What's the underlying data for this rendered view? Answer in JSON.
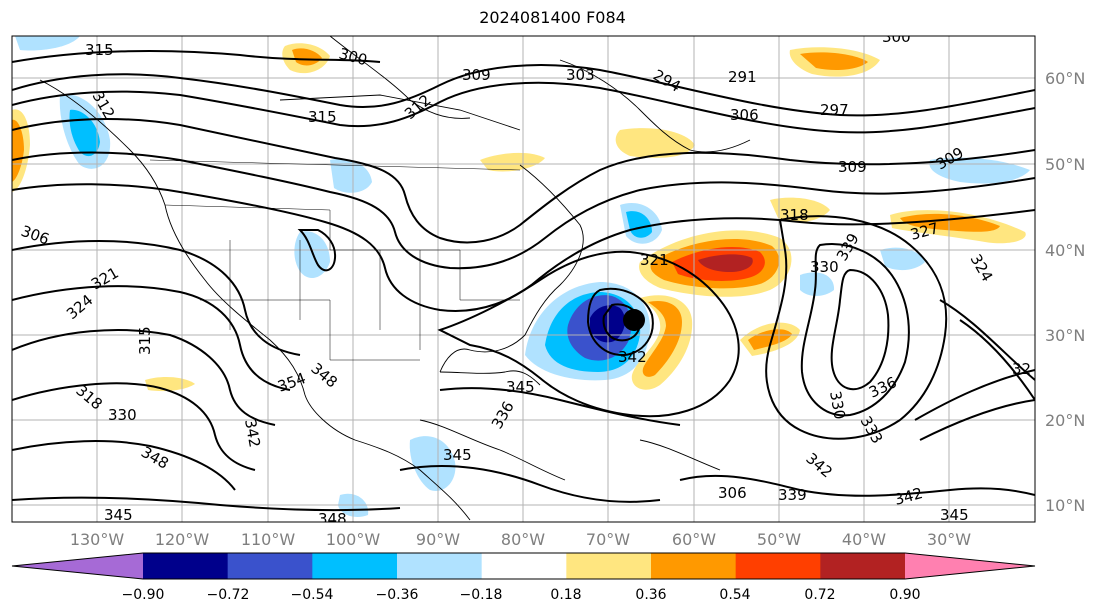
{
  "title": "2024081400 F084",
  "lat_labels": [
    "60°N",
    "50°N",
    "40°N",
    "30°N",
    "20°N",
    "10°N"
  ],
  "lon_labels": [
    "130°W",
    "120°W",
    "110°W",
    "100°W",
    "90°W",
    "80°W",
    "70°W",
    "60°W",
    "50°W",
    "40°W",
    "30°W"
  ],
  "colorbar": {
    "colors": [
      "#a66ad6",
      "#00008b",
      "#3a52cc",
      "#00bfff",
      "#b0e2ff",
      "#ffffff",
      "#ffe680",
      "#ff9900",
      "#ff3f00",
      "#b22222",
      "#ff80b0"
    ],
    "tick_labels": [
      "−0.90",
      "−0.72",
      "−0.54",
      "−0.36",
      "−0.18",
      "0.18",
      "0.36",
      "0.54",
      "0.72",
      "0.90"
    ]
  },
  "contour_labels": [
    "315",
    "312",
    "300",
    "309",
    "303",
    "294",
    "291",
    "300",
    "306",
    "297",
    "312",
    "315",
    "318",
    "309",
    "309",
    "306",
    "321",
    "324",
    "327",
    "321",
    "339",
    "330",
    "324",
    "315",
    "318",
    "330",
    "342",
    "354",
    "348",
    "345",
    "336",
    "342",
    "348",
    "345",
    "336",
    "333",
    "330",
    "342",
    "339",
    "342",
    "345",
    "345",
    "348",
    "306",
    "32"
  ]
}
